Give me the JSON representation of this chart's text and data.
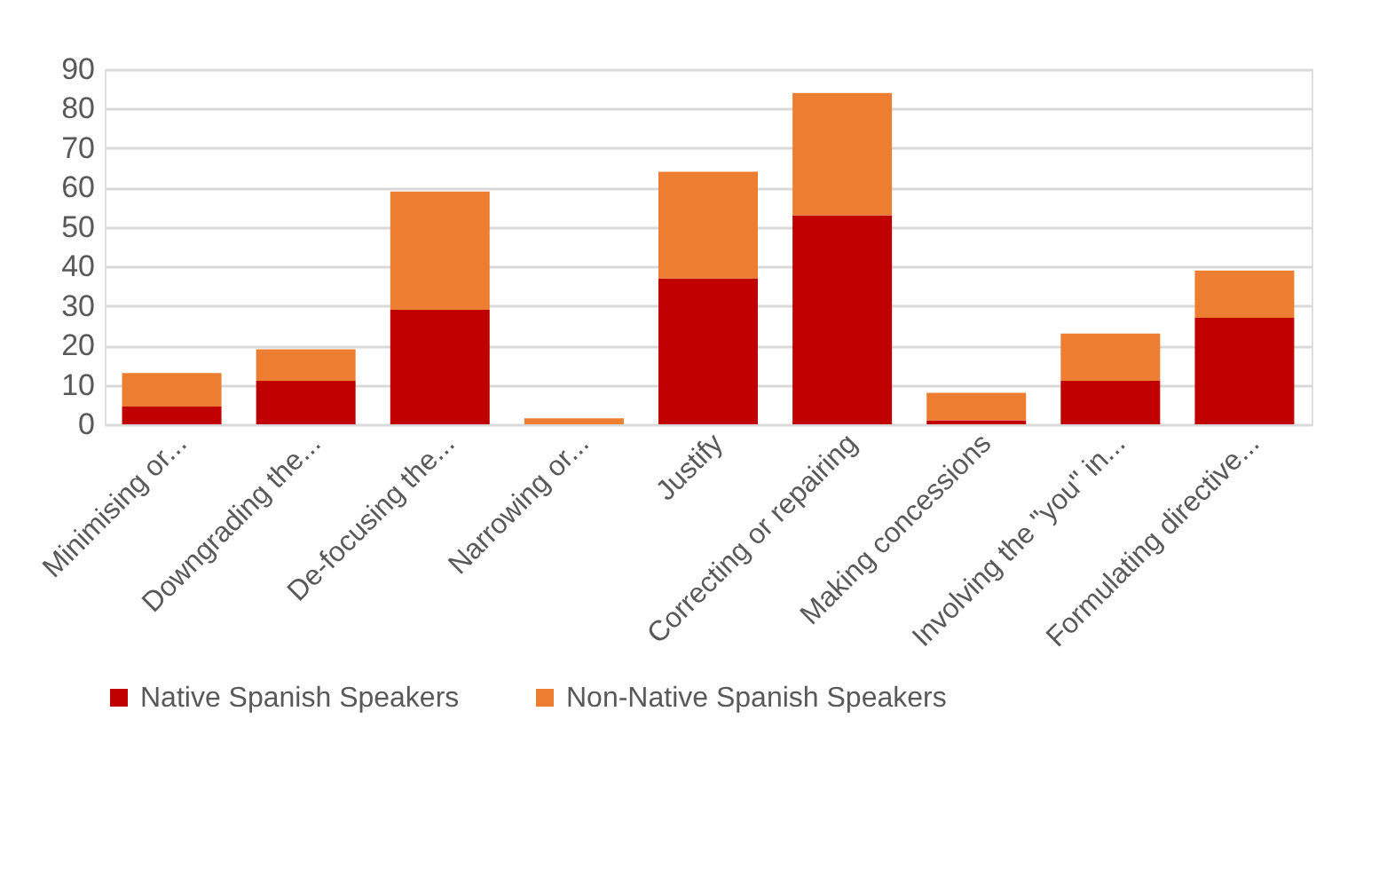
{
  "chart_data": {
    "type": "bar",
    "stacked": true,
    "categories": [
      "Minimising or...",
      "Downgrading the...",
      "De-focusing the...",
      "Narrowing or...",
      "Justify",
      "Correcting or repairing",
      "Making concessions",
      "Involving the \"you\" in...",
      "Formulating directive..."
    ],
    "series": [
      {
        "name": "Native Spanish Speakers",
        "color": "#c00000",
        "values": [
          4.5,
          11,
          29,
          0,
          37,
          53,
          1,
          11,
          27
        ]
      },
      {
        "name": "Non-Native Spanish Speakers",
        "color": "#ed7d31",
        "values": [
          8.5,
          8,
          30,
          1.5,
          27,
          31,
          7,
          12,
          12
        ]
      }
    ],
    "ylim": [
      0,
      90
    ],
    "yticks": [
      0,
      10,
      20,
      30,
      40,
      50,
      60,
      70,
      80,
      90
    ],
    "grid": "y",
    "legend": "bottom"
  }
}
